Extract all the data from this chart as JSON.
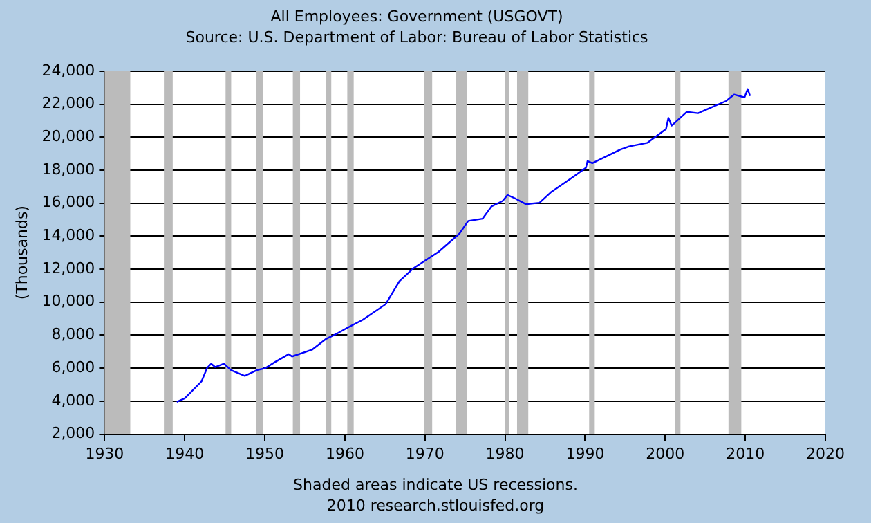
{
  "chart_data": {
    "type": "line",
    "title": "All Employees: Government (USGOVT)",
    "subtitle": "Source: U.S. Department of Labor: Bureau of Labor Statistics",
    "ylabel": "(Thousands)",
    "annotations": [
      "Shaded areas indicate US recessions.",
      "2010 research.stlouisfed.org"
    ],
    "x": [
      1939.0,
      1940.0,
      1942.1,
      1942.8,
      1943.3,
      1943.8,
      1944.9,
      1945.8,
      1947.5,
      1949.0,
      1950.0,
      1951.3,
      1953.0,
      1953.4,
      1955.9,
      1957.6,
      1959.0,
      1960.2,
      1962.2,
      1965.1,
      1966.8,
      1968.5,
      1971.7,
      1974.3,
      1975.4,
      1977.2,
      1978.3,
      1979.7,
      1980.3,
      1981.2,
      1982.6,
      1984.3,
      1985.8,
      1988.1,
      1990.1,
      1990.3,
      1990.9,
      1994.4,
      1995.5,
      1997.8,
      2000.1,
      2000.4,
      2000.8,
      2002.7,
      2004.1,
      2007.6,
      2008.6,
      2009.9,
      2010.3,
      2010.6
    ],
    "series": [
      {
        "color": "#0000ff",
        "values": [
          3960,
          4170,
          5200,
          6020,
          6270,
          6070,
          6270,
          5880,
          5530,
          5880,
          5990,
          6380,
          6850,
          6710,
          7120,
          7760,
          8090,
          8420,
          8920,
          9880,
          11260,
          12030,
          13050,
          14150,
          14920,
          15060,
          15800,
          16130,
          16490,
          16300,
          15940,
          16020,
          16690,
          17450,
          18140,
          18550,
          18420,
          19250,
          19440,
          19660,
          20490,
          21170,
          20700,
          21530,
          21450,
          22190,
          22580,
          22410,
          22910,
          22500
        ]
      }
    ],
    "xlim": [
      1930,
      2020
    ],
    "xticks": [
      1930,
      1940,
      1950,
      1960,
      1970,
      1980,
      1990,
      2000,
      2010,
      2020
    ],
    "ylim": [
      2000,
      24000
    ],
    "yticks": [
      {
        "value": 2000,
        "label": "2,000"
      },
      {
        "value": 4000,
        "label": "4,000"
      },
      {
        "value": 6000,
        "label": "6,000"
      },
      {
        "value": 8000,
        "label": "8,000"
      },
      {
        "value": 10000,
        "label": "10,000"
      },
      {
        "value": 12000,
        "label": "12,000"
      },
      {
        "value": 14000,
        "label": "14,000"
      },
      {
        "value": 16000,
        "label": "16,000"
      },
      {
        "value": 18000,
        "label": "18,000"
      },
      {
        "value": 20000,
        "label": "20,000"
      },
      {
        "value": 22000,
        "label": "22,000"
      },
      {
        "value": 24000,
        "label": "24,000"
      }
    ],
    "grid": "y",
    "legend": false,
    "marker": "none",
    "line_style": "solid",
    "bands": [
      {
        "axis": "x",
        "from": 1930,
        "to": 1933.2,
        "color": "#bbbbbb"
      },
      {
        "axis": "x",
        "from": 1937.4,
        "to": 1938.5,
        "color": "#bbbbbb"
      },
      {
        "axis": "x",
        "from": 1945.1,
        "to": 1945.8,
        "color": "#bbbbbb"
      },
      {
        "axis": "x",
        "from": 1948.9,
        "to": 1949.8,
        "color": "#bbbbbb"
      },
      {
        "axis": "x",
        "from": 1953.5,
        "to": 1954.4,
        "color": "#bbbbbb"
      },
      {
        "axis": "x",
        "from": 1957.6,
        "to": 1958.3,
        "color": "#bbbbbb"
      },
      {
        "axis": "x",
        "from": 1960.3,
        "to": 1961.1,
        "color": "#bbbbbb"
      },
      {
        "axis": "x",
        "from": 1969.9,
        "to": 1970.9,
        "color": "#bbbbbb"
      },
      {
        "axis": "x",
        "from": 1973.9,
        "to": 1975.2,
        "color": "#bbbbbb"
      },
      {
        "axis": "x",
        "from": 1980.0,
        "to": 1980.5,
        "color": "#bbbbbb"
      },
      {
        "axis": "x",
        "from": 1981.5,
        "to": 1982.9,
        "color": "#bbbbbb"
      },
      {
        "axis": "x",
        "from": 1990.5,
        "to": 1991.2,
        "color": "#bbbbbb"
      },
      {
        "axis": "x",
        "from": 2001.2,
        "to": 2001.9,
        "color": "#bbbbbb"
      },
      {
        "axis": "x",
        "from": 2007.9,
        "to": 2009.5,
        "color": "#bbbbbb"
      }
    ]
  }
}
